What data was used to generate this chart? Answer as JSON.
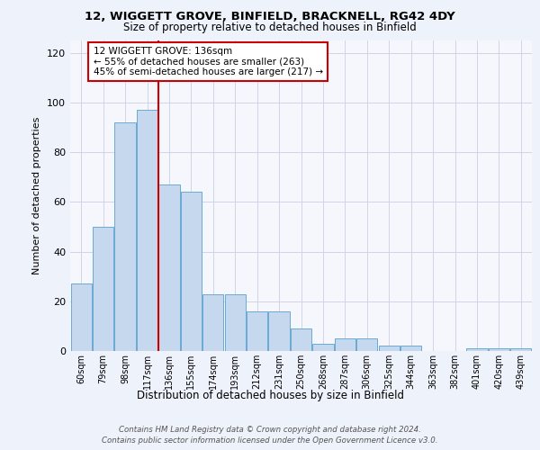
{
  "title1": "12, WIGGETT GROVE, BINFIELD, BRACKNELL, RG42 4DY",
  "title2": "Size of property relative to detached houses in Binfield",
  "xlabel": "Distribution of detached houses by size in Binfield",
  "ylabel": "Number of detached properties",
  "categories": [
    "60sqm",
    "79sqm",
    "98sqm",
    "117sqm",
    "136sqm",
    "155sqm",
    "174sqm",
    "193sqm",
    "212sqm",
    "231sqm",
    "250sqm",
    "268sqm",
    "287sqm",
    "306sqm",
    "325sqm",
    "344sqm",
    "363sqm",
    "382sqm",
    "401sqm",
    "420sqm",
    "439sqm"
  ],
  "values": [
    27,
    50,
    92,
    97,
    67,
    64,
    23,
    23,
    16,
    16,
    9,
    3,
    5,
    5,
    2,
    2,
    0,
    0,
    1,
    1,
    1
  ],
  "bar_color": "#c5d8ed",
  "bar_edge_color": "#6aaad4",
  "vline_color": "#cc0000",
  "annotation_text": "12 WIGGETT GROVE: 136sqm\n← 55% of detached houses are smaller (263)\n45% of semi-detached houses are larger (217) →",
  "annotation_box_color": "white",
  "annotation_box_edge": "#cc0000",
  "ylim": [
    0,
    125
  ],
  "yticks": [
    0,
    20,
    40,
    60,
    80,
    100,
    120
  ],
  "footer": "Contains HM Land Registry data © Crown copyright and database right 2024.\nContains public sector information licensed under the Open Government Licence v3.0.",
  "bg_color": "#eef2fb",
  "plot_bg_color": "#f5f7fd",
  "grid_color": "#d0d4e8",
  "title1_fontsize": 9.5,
  "title2_fontsize": 8.5
}
